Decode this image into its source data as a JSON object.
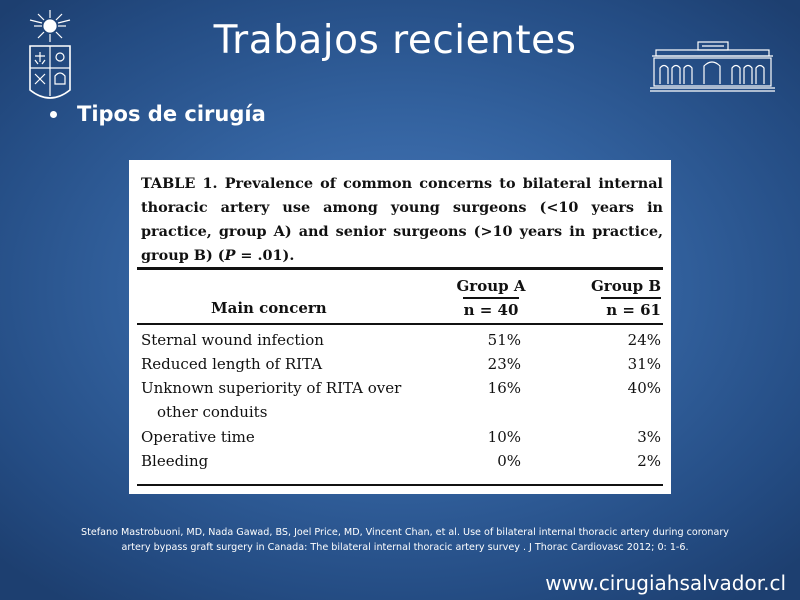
{
  "slide": {
    "title": "Trabajos recientes",
    "bullet": "Tipos de cirugía",
    "citation_line1": "Stefano Mastrobuoni, MD, Nada Gawad, BS, Joel Price, MD, Vincent Chan, et al. Use of bilateral internal thoracic artery during coronary",
    "citation_line2": "artery bypass graft surgery in Canada: The bilateral internal thoracic artery survey . J Thorac Cardiovasc 2012; 0: 1-6.",
    "website": "www.cirugiahsalvador.cl",
    "background_color": "#33629f"
  },
  "icons": {
    "crest": "university-crest-icon",
    "building": "hospital-building-icon"
  },
  "table": {
    "caption_part1": "TABLE 1. Prevalence of common concerns to bilateral internal thoracic artery use among young surgeons (<10 years in practice, group A) and senior surgeons (>10 years in practice, group B) (",
    "caption_p": "P",
    "caption_part2": " = .01).",
    "header": {
      "concern": "Main concern",
      "group_a": "Group A",
      "group_a_n": "n = 40",
      "group_b": "Group B",
      "group_b_n": "n = 61"
    },
    "rows": [
      {
        "concern": "Sternal wound infection",
        "group_a": "51%",
        "group_b": "24%"
      },
      {
        "concern": "Reduced length of RITA",
        "group_a": "23%",
        "group_b": "31%"
      },
      {
        "concern": "Unknown superiority of RITA over",
        "concern_cont": "other conduits",
        "group_a": "16%",
        "group_b": "40%"
      },
      {
        "concern": "Operative time",
        "group_a": "10%",
        "group_b": "3%"
      },
      {
        "concern": "Bleeding",
        "group_a": "0%",
        "group_b": "2%"
      }
    ]
  }
}
